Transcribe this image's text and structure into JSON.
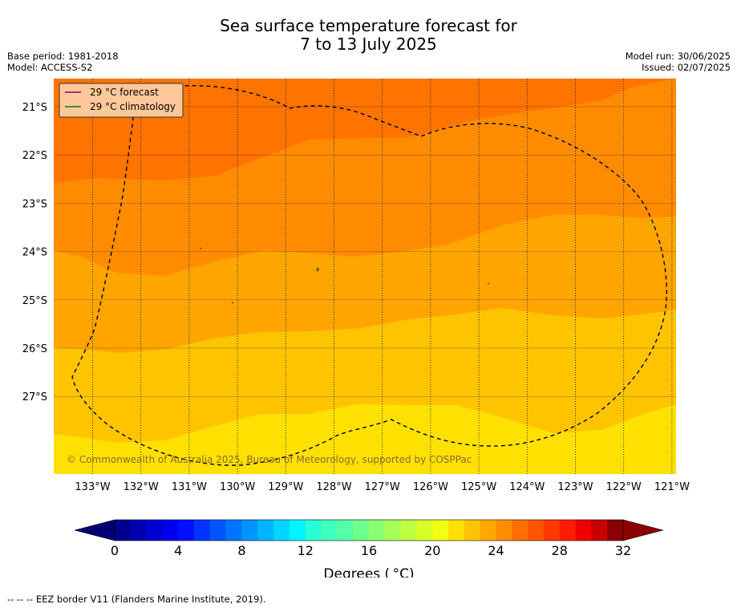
{
  "title": {
    "line1": "Sea surface temperature forecast for",
    "line2": "7 to 13 July 2025"
  },
  "metadata": {
    "base_period": "Base period: 1981-2018",
    "model": "Model: ACCESS-S2",
    "model_run": "Model run: 30/06/2025",
    "issued": "Issued: 02/07/2025"
  },
  "map": {
    "lat_labels": [
      "21°S",
      "22°S",
      "23°S",
      "24°S",
      "25°S",
      "26°S",
      "27°S"
    ],
    "lon_labels": [
      "133°W",
      "132°W",
      "131°W",
      "130°W",
      "129°W",
      "128°W",
      "127°W",
      "126°W",
      "125°W",
      "124°W",
      "123°W",
      "122°W",
      "121°W"
    ],
    "copyright": "© Commonwealth of Australia 2025, Bureau of Meteorology, supported by COSPPac",
    "legend": [
      {
        "label": "29 °C  forecast",
        "color": "#800080"
      },
      {
        "label": "29 °C  climatology",
        "color": "#008000"
      }
    ],
    "band_colors": [
      "#ff7300",
      "#ff8c00",
      "#ffa500",
      "#ffc400",
      "#ffe100"
    ]
  },
  "colorbar": {
    "ticks": [
      "0",
      "4",
      "8",
      "12",
      "16",
      "20",
      "24",
      "28",
      "32"
    ],
    "label": "Degrees ( °C)",
    "colors": [
      "#00008f",
      "#0000b0",
      "#0000d0",
      "#0000ee",
      "#0010ff",
      "#0035ff",
      "#0055ff",
      "#0075ff",
      "#0095ff",
      "#00b5ff",
      "#00d5ff",
      "#00f5ff",
      "#28ffd5",
      "#40ffbf",
      "#55ffa5",
      "#6fff8a",
      "#8cff70",
      "#a5ff55",
      "#bfff40",
      "#d8ff28",
      "#f2ff10",
      "#ffe000",
      "#ffc300",
      "#ffa800",
      "#ff8c00",
      "#ff7000",
      "#ff5400",
      "#ff3800",
      "#ff1c00",
      "#ee0000",
      "#c80000",
      "#8b0000"
    ],
    "under_color": "#000070",
    "over_color": "#8b0000"
  },
  "footer": "--  --  -- EEZ border V11 (Flanders Marine Institute, 2019)."
}
